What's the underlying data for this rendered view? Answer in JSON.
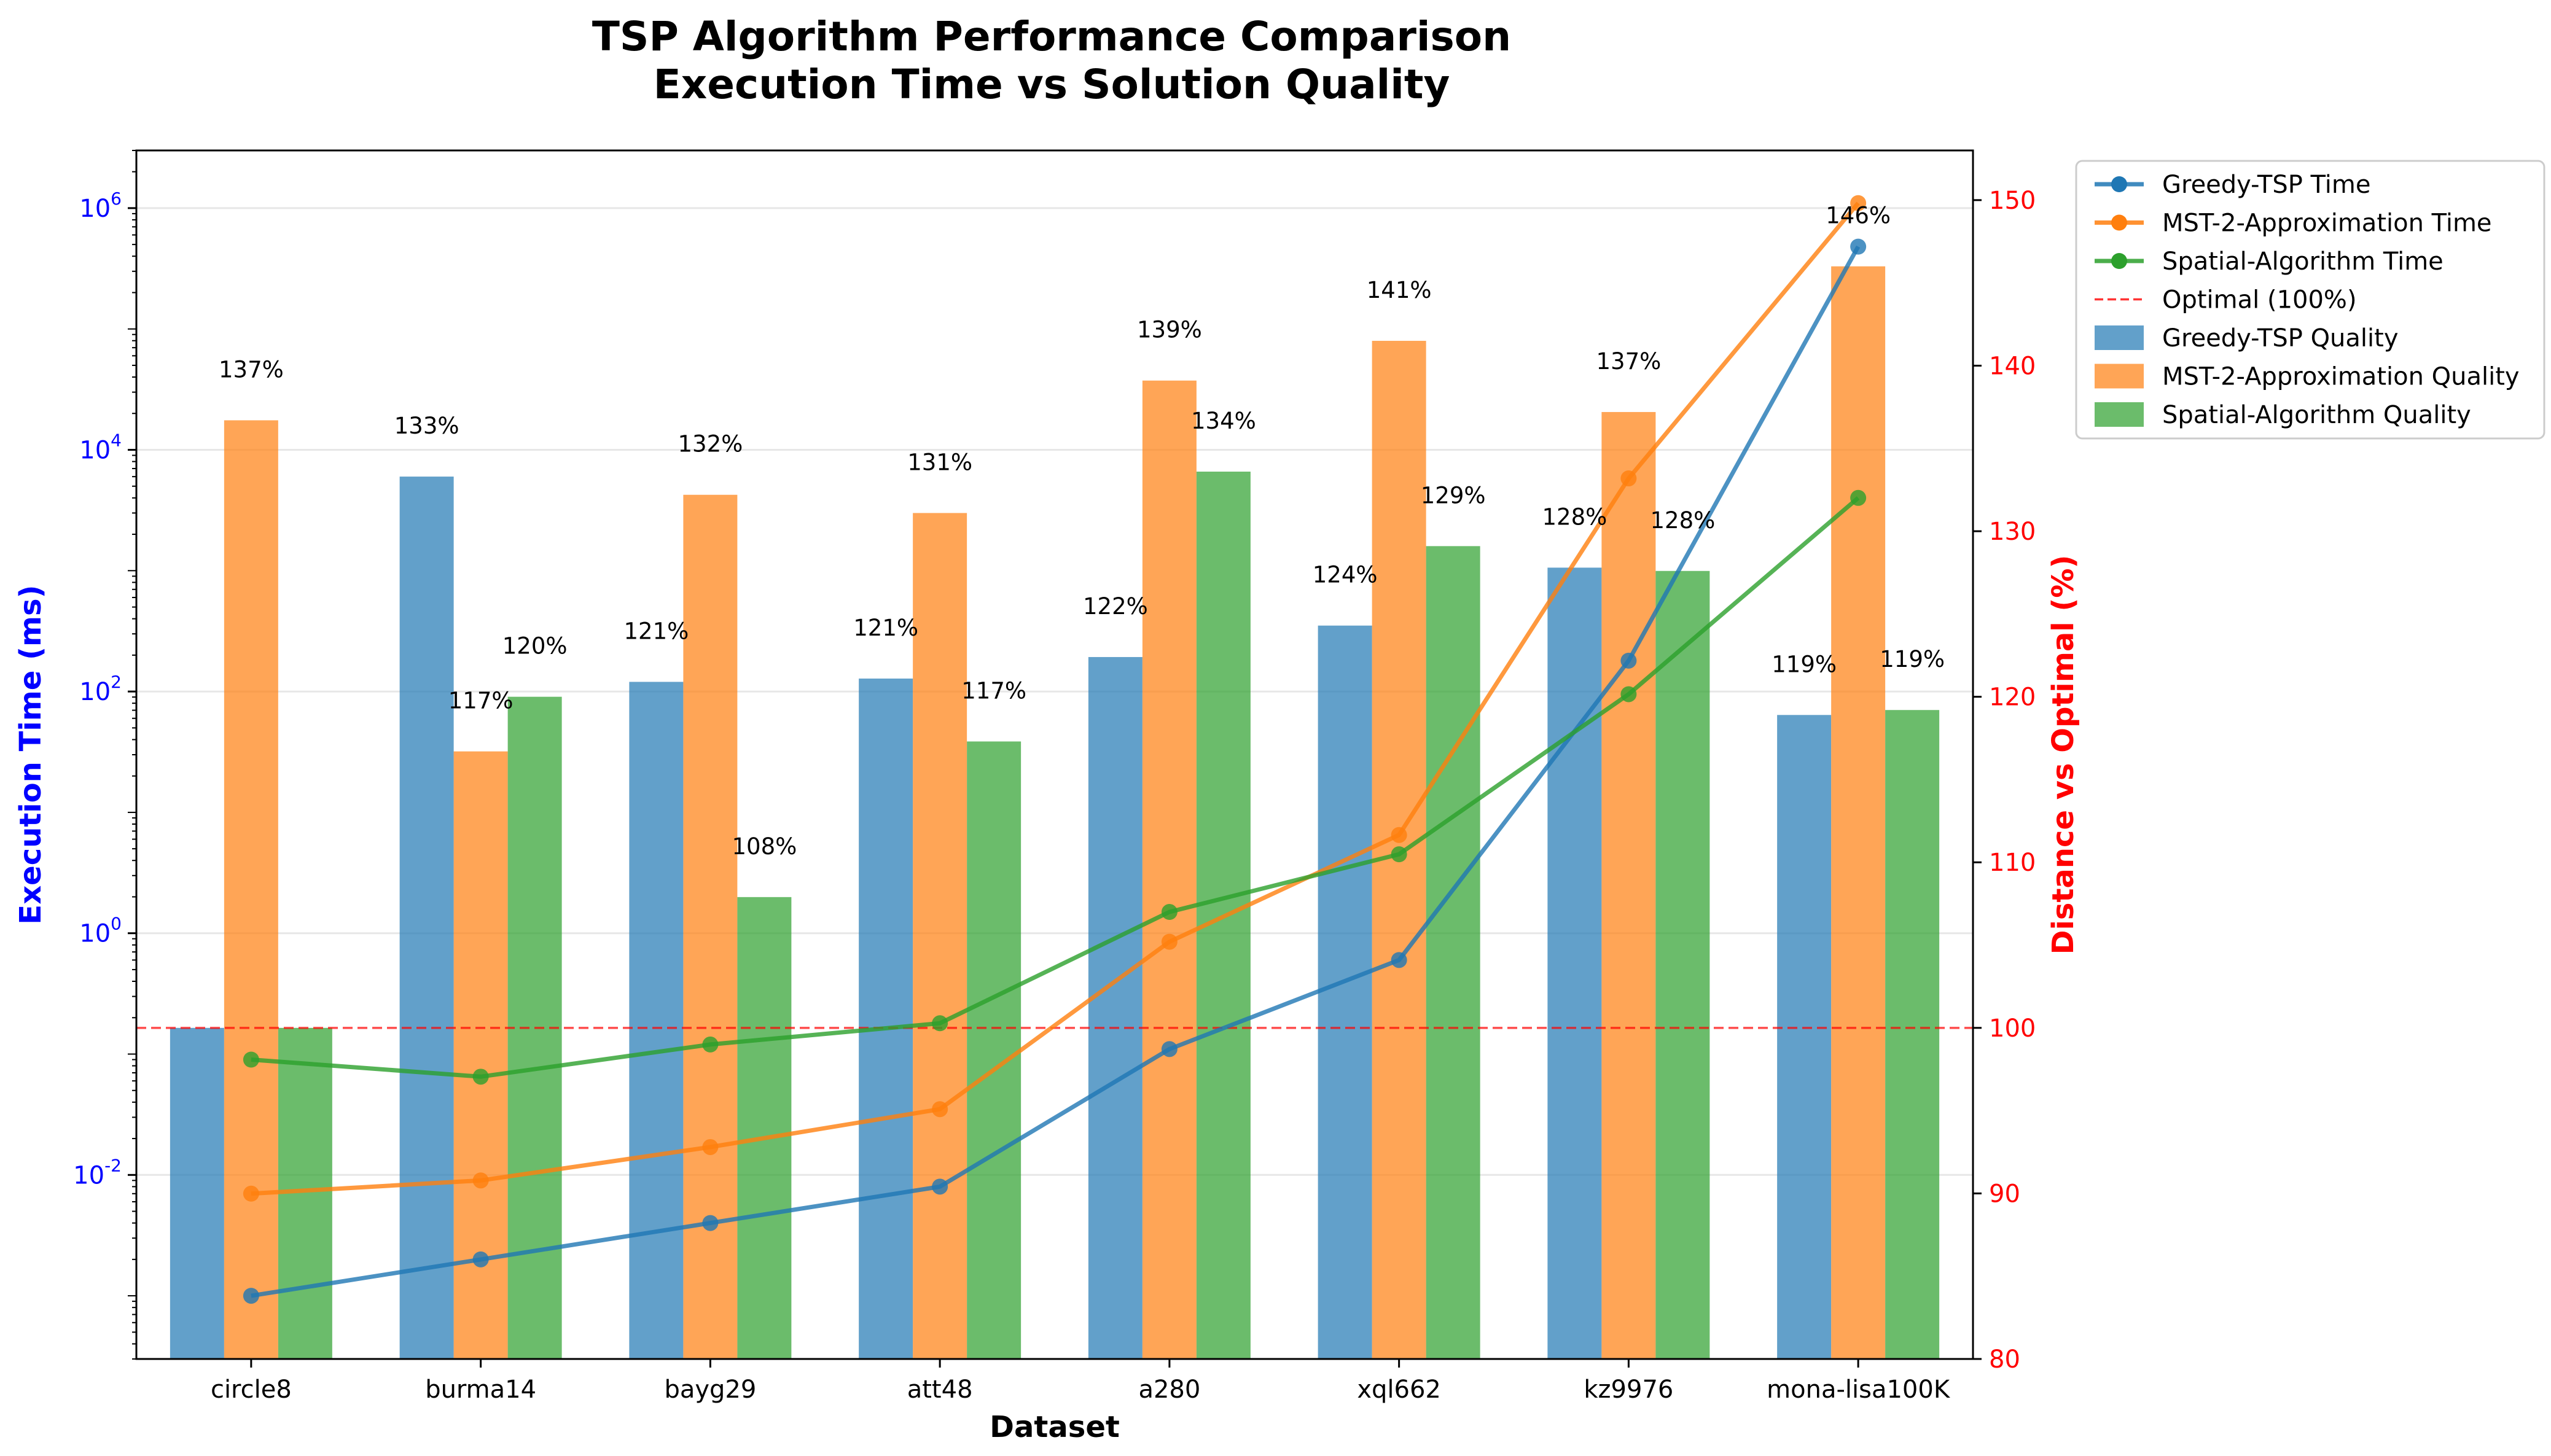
{
  "chart_data": {
    "type": "bar+line (dual axis)",
    "title_lines": [
      "TSP Algorithm Performance Comparison",
      "Execution Time vs Solution Quality"
    ],
    "xlabel": "Dataset",
    "ylabel_left": "Execution Time (ms)",
    "ylabel_right": "Distance vs Optimal (%)",
    "left_axis": {
      "scale": "log",
      "ylim": [
        0.0003,
        3000000
      ],
      "tick_labels": [
        "10^-2",
        "10^0",
        "10^2",
        "10^4",
        "10^6"
      ],
      "color": "#0000ff"
    },
    "right_axis": {
      "scale": "linear",
      "ylim": [
        80,
        153
      ],
      "ticks": [
        80,
        90,
        100,
        110,
        120,
        130,
        140,
        150
      ],
      "color": "#ff0000"
    },
    "categories": [
      "circle8",
      "burma14",
      "bayg29",
      "att48",
      "a280",
      "xql662",
      "kz9976",
      "mona-lisa100K"
    ],
    "time_series": [
      {
        "name": "Greedy-TSP Time",
        "color": "#1f77b4",
        "values": [
          0.001,
          0.002,
          0.004,
          0.008,
          0.11,
          0.6,
          180,
          480000
        ]
      },
      {
        "name": "MST-2-Approximation Time",
        "color": "#ff7f0e",
        "values": [
          0.007,
          0.009,
          0.017,
          0.035,
          0.85,
          6.5,
          5800,
          1100000
        ]
      },
      {
        "name": "Spatial-Algorithm Time",
        "color": "#2ca02c",
        "values": [
          0.09,
          0.065,
          0.12,
          0.18,
          1.5,
          4.5,
          95,
          4000
        ]
      }
    ],
    "quality_series": [
      {
        "name": "Greedy-TSP Quality",
        "color": "#1f77b4",
        "values": [
          100,
          133.3,
          120.9,
          121.1,
          122.4,
          124.3,
          127.8,
          118.9
        ],
        "labels": [
          "",
          "133%",
          "121%",
          "121%",
          "122%",
          "124%",
          "128%",
          "119%"
        ]
      },
      {
        "name": "MST-2-Approximation Quality",
        "color": "#ff7f0e",
        "values": [
          136.7,
          116.7,
          132.2,
          131.1,
          139.1,
          141.5,
          137.2,
          146.0
        ],
        "labels": [
          "137%",
          "117%",
          "132%",
          "131%",
          "139%",
          "141%",
          "137%",
          "146%"
        ]
      },
      {
        "name": "Spatial-Algorithm Quality",
        "color": "#2ca02c",
        "values": [
          100,
          120.0,
          107.9,
          117.3,
          133.6,
          129.1,
          127.6,
          119.2
        ],
        "labels": [
          "",
          "120%",
          "108%",
          "117%",
          "134%",
          "129%",
          "128%",
          "119%"
        ]
      }
    ],
    "optimal_line": {
      "name": "Optimal (100%)",
      "value": 100,
      "color": "#ff0000"
    },
    "legend": [
      "Greedy-TSP Time",
      "MST-2-Approximation Time",
      "Spatial-Algorithm Time",
      "Optimal (100%)",
      "Greedy-TSP Quality",
      "MST-2-Approximation Quality",
      "Spatial-Algorithm Quality"
    ],
    "legend_position": "outside right, top",
    "grid": "horizontal, major y"
  }
}
